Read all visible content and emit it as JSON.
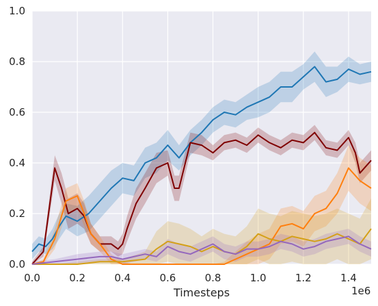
{
  "chart_data": {
    "type": "line",
    "title": "",
    "xlabel": "Timesteps",
    "ylabel": "",
    "x_offset_label": "1e6",
    "xlim": [
      0,
      1.5
    ],
    "ylim": [
      0,
      1.0
    ],
    "xticks": [
      0.0,
      0.2,
      0.4,
      0.6,
      0.8,
      1.0,
      1.2,
      1.4
    ],
    "xtick_labels": [
      "0.0",
      "0.2",
      "0.4",
      "0.6",
      "0.8",
      "1.0",
      "1.2",
      "1.4"
    ],
    "yticks": [
      0.0,
      0.2,
      0.4,
      0.6,
      0.8,
      1.0
    ],
    "ytick_labels": [
      "0.0",
      "0.2",
      "0.4",
      "0.6",
      "0.8",
      "1.0"
    ],
    "grid": true,
    "background": "#eaeaf2",
    "series": [
      {
        "color": "#1f77b4",
        "x": [
          0.0,
          0.03,
          0.06,
          0.09,
          0.12,
          0.15,
          0.2,
          0.25,
          0.3,
          0.35,
          0.4,
          0.45,
          0.5,
          0.55,
          0.6,
          0.65,
          0.7,
          0.75,
          0.8,
          0.85,
          0.9,
          0.95,
          1.0,
          1.05,
          1.1,
          1.15,
          1.2,
          1.25,
          1.3,
          1.35,
          1.4,
          1.45,
          1.5
        ],
        "y": [
          0.05,
          0.08,
          0.07,
          0.1,
          0.15,
          0.19,
          0.17,
          0.2,
          0.25,
          0.3,
          0.34,
          0.33,
          0.4,
          0.42,
          0.47,
          0.42,
          0.48,
          0.52,
          0.57,
          0.6,
          0.59,
          0.62,
          0.64,
          0.66,
          0.7,
          0.7,
          0.74,
          0.78,
          0.72,
          0.73,
          0.77,
          0.75,
          0.76
        ],
        "band": [
          0.03,
          0.03,
          0.03,
          0.04,
          0.05,
          0.05,
          0.06,
          0.07,
          0.07,
          0.07,
          0.06,
          0.06,
          0.06,
          0.06,
          0.06,
          0.05,
          0.05,
          0.05,
          0.05,
          0.05,
          0.05,
          0.05,
          0.06,
          0.06,
          0.06,
          0.06,
          0.05,
          0.06,
          0.06,
          0.05,
          0.05,
          0.04,
          0.04
        ]
      },
      {
        "color": "#7f0000",
        "x": [
          0.0,
          0.05,
          0.08,
          0.1,
          0.13,
          0.16,
          0.2,
          0.23,
          0.26,
          0.3,
          0.35,
          0.38,
          0.4,
          0.42,
          0.46,
          0.5,
          0.55,
          0.6,
          0.63,
          0.65,
          0.7,
          0.75,
          0.8,
          0.85,
          0.9,
          0.95,
          1.0,
          1.05,
          1.1,
          1.15,
          1.2,
          1.25,
          1.3,
          1.35,
          1.4,
          1.43,
          1.45,
          1.5
        ],
        "y": [
          0.0,
          0.05,
          0.25,
          0.38,
          0.3,
          0.2,
          0.22,
          0.19,
          0.12,
          0.08,
          0.08,
          0.06,
          0.08,
          0.14,
          0.24,
          0.3,
          0.38,
          0.4,
          0.3,
          0.3,
          0.48,
          0.47,
          0.44,
          0.48,
          0.49,
          0.47,
          0.51,
          0.48,
          0.46,
          0.49,
          0.48,
          0.52,
          0.46,
          0.45,
          0.5,
          0.44,
          0.36,
          0.41
        ],
        "band": [
          0.01,
          0.02,
          0.04,
          0.05,
          0.06,
          0.06,
          0.06,
          0.05,
          0.04,
          0.03,
          0.03,
          0.03,
          0.04,
          0.05,
          0.06,
          0.06,
          0.06,
          0.05,
          0.05,
          0.05,
          0.04,
          0.04,
          0.03,
          0.03,
          0.03,
          0.03,
          0.03,
          0.03,
          0.03,
          0.03,
          0.03,
          0.03,
          0.03,
          0.03,
          0.03,
          0.04,
          0.04,
          0.04
        ]
      },
      {
        "color": "#ff7f0e",
        "x": [
          0.0,
          0.05,
          0.1,
          0.15,
          0.2,
          0.23,
          0.26,
          0.3,
          0.35,
          0.4,
          0.45,
          0.5,
          0.55,
          0.6,
          0.65,
          0.7,
          0.75,
          0.8,
          0.85,
          0.9,
          0.95,
          1.0,
          1.05,
          1.1,
          1.15,
          1.2,
          1.25,
          1.3,
          1.35,
          1.4,
          1.45,
          1.5
        ],
        "y": [
          0.0,
          0.01,
          0.1,
          0.25,
          0.27,
          0.2,
          0.12,
          0.08,
          0.02,
          0.0,
          0.0,
          0.0,
          0.0,
          0.0,
          0.0,
          0.0,
          0.0,
          0.0,
          0.0,
          0.02,
          0.04,
          0.06,
          0.08,
          0.15,
          0.16,
          0.14,
          0.2,
          0.22,
          0.28,
          0.38,
          0.33,
          0.3
        ],
        "band": [
          0.0,
          0.01,
          0.04,
          0.05,
          0.05,
          0.05,
          0.04,
          0.03,
          0.02,
          0.01,
          0.0,
          0.0,
          0.0,
          0.0,
          0.0,
          0.0,
          0.0,
          0.0,
          0.01,
          0.03,
          0.05,
          0.06,
          0.06,
          0.07,
          0.07,
          0.07,
          0.07,
          0.07,
          0.08,
          0.09,
          0.09,
          0.09
        ]
      },
      {
        "color": "#d4a017",
        "x": [
          0.0,
          0.1,
          0.2,
          0.3,
          0.4,
          0.5,
          0.55,
          0.6,
          0.65,
          0.7,
          0.75,
          0.8,
          0.85,
          0.9,
          0.95,
          1.0,
          1.05,
          1.1,
          1.15,
          1.2,
          1.25,
          1.3,
          1.35,
          1.4,
          1.45,
          1.5
        ],
        "y": [
          0.0,
          0.0,
          0.0,
          0.01,
          0.01,
          0.02,
          0.06,
          0.09,
          0.08,
          0.07,
          0.05,
          0.07,
          0.05,
          0.04,
          0.07,
          0.12,
          0.1,
          0.09,
          0.11,
          0.1,
          0.09,
          0.1,
          0.12,
          0.1,
          0.08,
          0.14
        ],
        "band": [
          0.0,
          0.0,
          0.01,
          0.01,
          0.01,
          0.03,
          0.07,
          0.08,
          0.08,
          0.07,
          0.06,
          0.07,
          0.07,
          0.07,
          0.08,
          0.1,
          0.1,
          0.1,
          0.1,
          0.1,
          0.1,
          0.1,
          0.1,
          0.1,
          0.1,
          0.12
        ]
      },
      {
        "color": "#9467bd",
        "x": [
          0.0,
          0.1,
          0.2,
          0.3,
          0.35,
          0.4,
          0.45,
          0.5,
          0.55,
          0.6,
          0.65,
          0.7,
          0.75,
          0.8,
          0.85,
          0.9,
          0.95,
          1.0,
          1.05,
          1.1,
          1.15,
          1.2,
          1.25,
          1.3,
          1.35,
          1.4,
          1.45,
          1.5
        ],
        "y": [
          0.0,
          0.01,
          0.02,
          0.03,
          0.03,
          0.02,
          0.03,
          0.04,
          0.03,
          0.07,
          0.05,
          0.04,
          0.06,
          0.08,
          0.05,
          0.04,
          0.06,
          0.06,
          0.07,
          0.09,
          0.08,
          0.06,
          0.07,
          0.09,
          0.1,
          0.11,
          0.08,
          0.06
        ],
        "band": [
          0.01,
          0.01,
          0.02,
          0.02,
          0.02,
          0.02,
          0.02,
          0.02,
          0.02,
          0.03,
          0.03,
          0.03,
          0.03,
          0.03,
          0.03,
          0.03,
          0.03,
          0.03,
          0.03,
          0.03,
          0.03,
          0.03,
          0.03,
          0.03,
          0.03,
          0.03,
          0.03,
          0.03
        ]
      }
    ]
  }
}
